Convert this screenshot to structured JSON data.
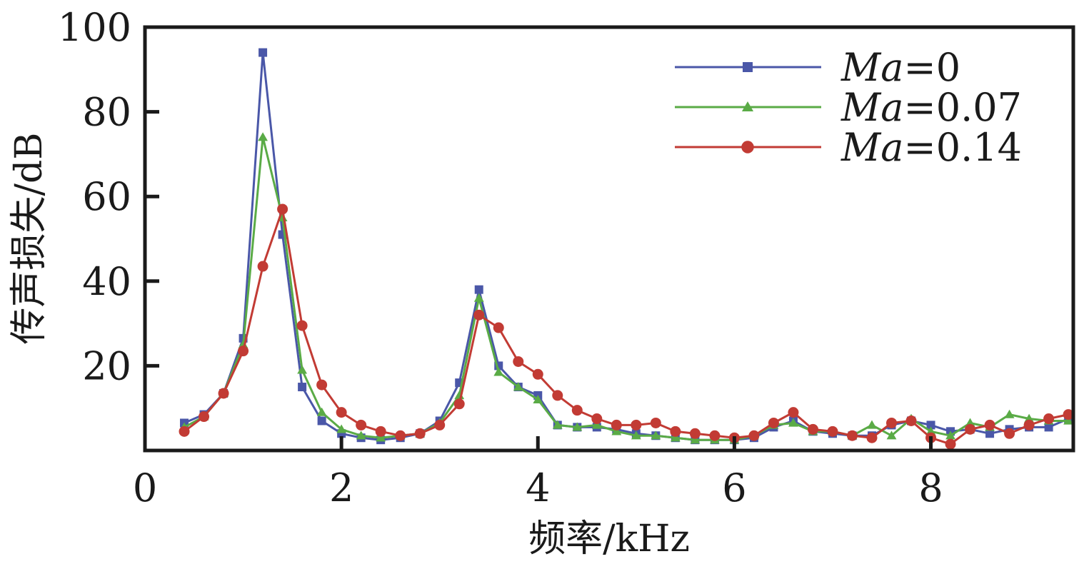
{
  "chart_data": {
    "type": "line",
    "xlabel": "频率/kHz",
    "ylabel": "传声损失/dB",
    "xlim": [
      0,
      9.45
    ],
    "ylim": [
      0,
      100
    ],
    "x_ticks": [
      0,
      2,
      4,
      6,
      8
    ],
    "x_tick_labels": [
      "0",
      "2",
      "4",
      "6",
      "8"
    ],
    "y_ticks": [
      20,
      40,
      60,
      80,
      100
    ],
    "y_tick_labels": [
      "20",
      "40",
      "60",
      "80",
      "100"
    ],
    "grid": false,
    "legend_position": "top-right",
    "x": [
      0.4,
      0.6,
      0.8,
      1.0,
      1.2,
      1.4,
      1.6,
      1.8,
      2.0,
      2.2,
      2.4,
      2.6,
      2.8,
      3.0,
      3.2,
      3.4,
      3.6,
      3.8,
      4.0,
      4.2,
      4.4,
      4.6,
      4.8,
      5.0,
      5.2,
      5.4,
      5.6,
      5.8,
      6.0,
      6.2,
      6.4,
      6.6,
      6.8,
      7.0,
      7.2,
      7.4,
      7.6,
      7.8,
      8.0,
      8.2,
      8.4,
      8.6,
      8.8,
      9.0,
      9.2,
      9.4
    ],
    "series": [
      {
        "name_prefix": "Ma",
        "name_suffix": "=0",
        "color": "#4a57a8",
        "marker": "square",
        "values": [
          6.5,
          8.5,
          13.5,
          26.5,
          94,
          51,
          15,
          7,
          4,
          3,
          2.5,
          3,
          4,
          7,
          16,
          38,
          20,
          15,
          13,
          6,
          5.5,
          5.5,
          5,
          4,
          3.5,
          3,
          2.5,
          2.5,
          2.5,
          3,
          5.5,
          7,
          4.5,
          4,
          3.5,
          3.5,
          6,
          7,
          6,
          4.5,
          5,
          4,
          5,
          5.5,
          5.5,
          7.5
        ]
      },
      {
        "name_prefix": "Ma",
        "name_suffix": "=0.07",
        "color": "#5aab46",
        "marker": "triangle",
        "values": [
          5.5,
          8,
          13.5,
          25,
          74,
          55,
          19,
          9,
          5,
          3.5,
          3,
          3.5,
          4,
          6.5,
          13,
          36,
          18.5,
          15,
          12,
          6,
          5.5,
          6,
          4.5,
          3.5,
          3.5,
          3,
          2.5,
          2.5,
          2.5,
          3.5,
          6,
          6.5,
          4.5,
          4.5,
          3.5,
          6,
          3.5,
          7.5,
          4.5,
          3.5,
          6.5,
          5.5,
          8.5,
          7.5,
          7,
          7
        ]
      },
      {
        "name_prefix": "Ma",
        "name_suffix": "=0.14",
        "color": "#c23b34",
        "marker": "circle",
        "values": [
          4.5,
          8,
          13.5,
          23.5,
          43.5,
          57,
          29.5,
          15.5,
          9,
          6,
          4.5,
          3.5,
          4,
          6,
          11,
          32,
          29,
          21,
          18,
          13,
          9.5,
          7.5,
          6,
          6,
          6.5,
          4.5,
          4,
          3.5,
          3,
          3.5,
          6.5,
          9,
          5,
          4.5,
          3.5,
          3,
          6.5,
          7,
          3,
          1.5,
          5,
          6,
          4,
          6,
          7.5,
          8.5
        ]
      }
    ]
  }
}
